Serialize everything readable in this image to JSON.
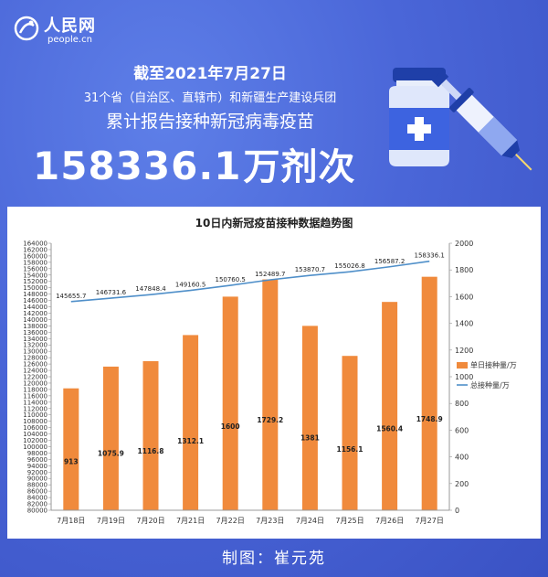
{
  "header": {
    "logo_cn": "人民网",
    "logo_en": "people.cn",
    "date": "截至2021年7月27日",
    "region": "31个省（自治区、直辖市）和新疆生产建设兵团",
    "subtitle": "累计报告接种新冠病毒疫苗",
    "total_value": "158336.1",
    "total_unit": "万剂次"
  },
  "footer": {
    "credit": "制图：崔元苑"
  },
  "colors": {
    "background": "#4a66d8",
    "bar": "#f08a3c",
    "line": "#4f8fc9",
    "card": "#ffffff"
  },
  "icons": [
    "people-logo-icon",
    "vaccine-vial-icon",
    "syringe-icon"
  ],
  "chart_data": {
    "type": "bar",
    "title": "10日内新冠疫苗接种数据趋势图",
    "categories": [
      "7月18日",
      "7月19日",
      "7月20日",
      "7月21日",
      "7月22日",
      "7月23日",
      "7月24日",
      "7月25日",
      "7月26日",
      "7月27日"
    ],
    "left_axis": {
      "min": 80000,
      "max": 164000,
      "step": 2000
    },
    "right_axis": {
      "min": 0,
      "max": 2000,
      "step": 200
    },
    "series": [
      {
        "name": "单日接种量/万",
        "type": "bar",
        "axis": "right",
        "values": [
          913,
          1075.9,
          1116.8,
          1312.1,
          1600,
          1729.2,
          1381,
          1156.1,
          1560.4,
          1748.9
        ],
        "labels": [
          "913",
          "1075.9",
          "1116.8",
          "1312.1",
          "1600",
          "1729.2",
          "1381",
          "1156.1",
          "1560.4",
          "1748.9"
        ]
      },
      {
        "name": "总接种量/万",
        "type": "line",
        "axis": "left",
        "values": [
          145655.7,
          146731.6,
          147848.4,
          149160.5,
          150760.5,
          152489.7,
          153870.7,
          155026.8,
          156587.2,
          158336.1
        ],
        "labels": [
          "145655.7",
          "146731.6",
          "147848.4",
          "149160.5",
          "150760.5",
          "152489.7",
          "153870.7",
          "155026.8",
          "156587.2",
          "158336.1"
        ]
      }
    ],
    "legend_position": "right",
    "grid": false
  }
}
